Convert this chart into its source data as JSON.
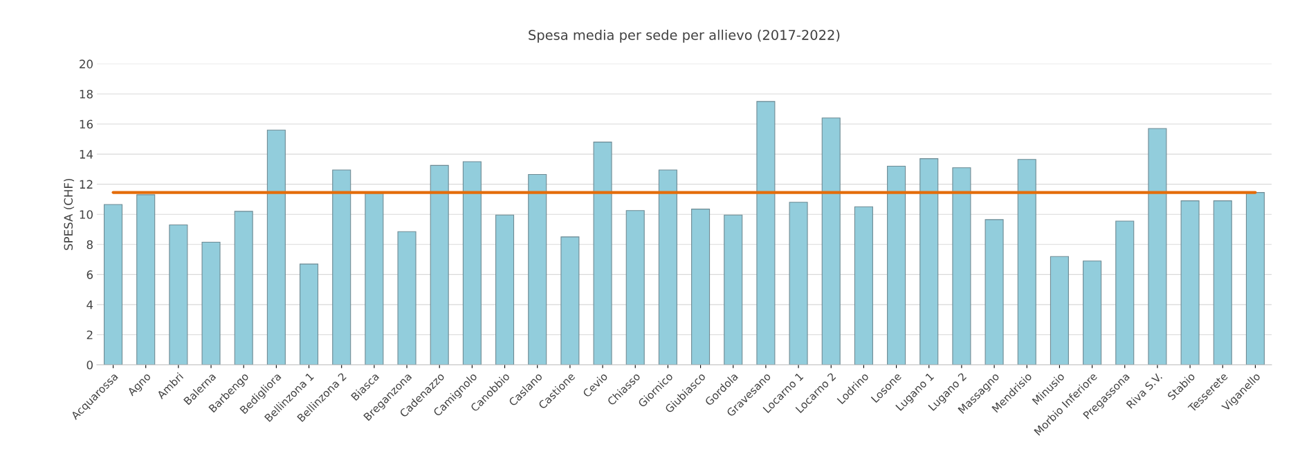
{
  "chart_data": {
    "type": "bar",
    "title": "Spesa media per sede per allievo (2017-2022)",
    "ylabel": "SPESA (CHF)",
    "categories": [
      "Acquarossa",
      "Agno",
      "Ambri",
      "Balerna",
      "Barbengo",
      "Bedigliora",
      "Bellinzona 1",
      "Bellinzona 2",
      "Biasca",
      "Breganzona",
      "Cadenazzo",
      "Camignolo",
      "Canobbio",
      "Caslano",
      "Castione",
      "Cevio",
      "Chiasso",
      "Giornico",
      "Giubiasco",
      "Gordola",
      "Gravesano",
      "Locarno 1",
      "Locarno 2",
      "Lodrino",
      "Losone",
      "Lugano 1",
      "Lugano 2",
      "Massagno",
      "Mendrisio",
      "Minusio",
      "Morbio Inferiore",
      "Pregassona",
      "Riva S.V.",
      "Stabio",
      "Tesserete",
      "Viganello"
    ],
    "series": [
      {
        "color": "#92cddc",
        "values": [
          10.65,
          11.3,
          9.3,
          8.15,
          10.2,
          15.6,
          6.7,
          12.95,
          11.4,
          8.85,
          13.25,
          13.5,
          9.95,
          12.65,
          8.5,
          14.8,
          10.25,
          12.95,
          10.35,
          9.95,
          17.5,
          10.8,
          16.4,
          10.5,
          13.2,
          13.7,
          13.1,
          9.65,
          13.65,
          7.2,
          6.9,
          9.55,
          15.7,
          10.9,
          10.9,
          11.45
        ]
      },
      {
        "type": "line",
        "color": "#e46c0a",
        "values": [
          11.45,
          11.45,
          11.45,
          11.45,
          11.45,
          11.45,
          11.45,
          11.45,
          11.45,
          11.45,
          11.45,
          11.45,
          11.45,
          11.45,
          11.45,
          11.45,
          11.45,
          11.45,
          11.45,
          11.45,
          11.45,
          11.45,
          11.45,
          11.45,
          11.45,
          11.45,
          11.45,
          11.45,
          11.45,
          11.45,
          11.45,
          11.45,
          11.45,
          11.45,
          11.45,
          11.45
        ]
      }
    ],
    "ylim": [
      0,
      20
    ],
    "yticks": [
      0,
      2,
      4,
      6,
      8,
      10,
      12,
      14,
      16,
      18,
      20
    ],
    "grid": "y"
  }
}
